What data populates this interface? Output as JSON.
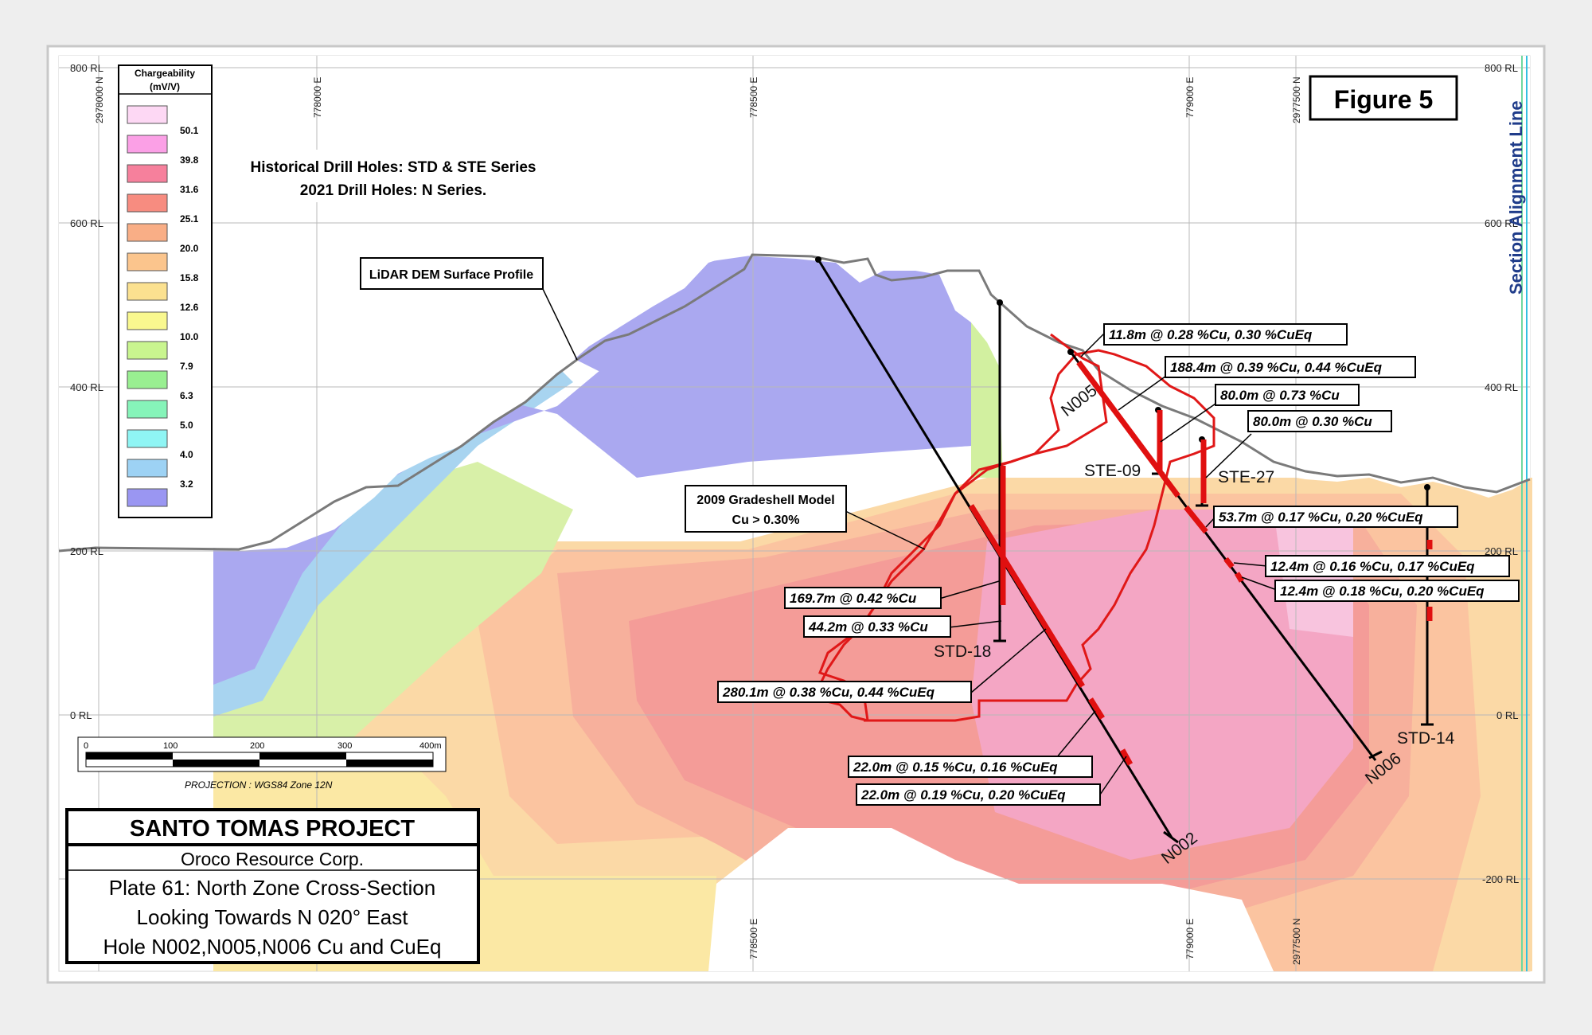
{
  "figure_label": "Figure 5",
  "side_label": "Section Alignment Line",
  "notes_box": {
    "line1": "Historical Drill Holes: STD & STE Series",
    "line2": "2021 Drill Holes: N Series."
  },
  "lidar_label": "LiDAR DEM Surface Profile",
  "gradeshell_box": {
    "line1": "2009 Gradeshell Model",
    "line2": "Cu > 0.30%"
  },
  "legend": {
    "title_line1": "Chargeability",
    "title_line2": "(mV/V)",
    "swatches": [
      {
        "color": "#fdd8f4",
        "value": "50.1"
      },
      {
        "color": "#fba0e6",
        "value": "39.8"
      },
      {
        "color": "#f6809c",
        "value": "31.6"
      },
      {
        "color": "#f78c80",
        "value": "25.1"
      },
      {
        "color": "#f9ae86",
        "value": "20.0"
      },
      {
        "color": "#fbc58d",
        "value": "15.8"
      },
      {
        "color": "#fbe190",
        "value": "12.6"
      },
      {
        "color": "#f9f88f",
        "value": "10.0"
      },
      {
        "color": "#c9f58f",
        "value": "7.9"
      },
      {
        "color": "#99ef91",
        "value": "6.3"
      },
      {
        "color": "#86f4b9",
        "value": "5.0"
      },
      {
        "color": "#8ff5f4",
        "value": "4.0"
      },
      {
        "color": "#9dd2f4",
        "value": "3.2"
      },
      {
        "color": "#9a96f2",
        "value": ""
      }
    ]
  },
  "rl_labels_left": [
    "800 RL",
    "600 RL",
    "400 RL",
    "200 RL",
    "0 RL"
  ],
  "rl_labels_right": [
    "800 RL",
    "600 RL",
    "400 RL",
    "200 RL",
    "0 RL",
    "-200 RL"
  ],
  "easting_labels_top": [
    "2978000 N",
    "778000 E",
    "778500 E",
    "779000 E",
    "2977500 N"
  ],
  "easting_labels_bottom": [
    "778500 E",
    "779000 E",
    "2977500 N"
  ],
  "scale_bar": {
    "ticks": [
      "0",
      "100",
      "200",
      "300",
      "400m"
    ],
    "projection": "PROJECTION : WGS84 Zone 12N"
  },
  "title_block": {
    "project": "SANTO TOMAS PROJECT",
    "company": "Oroco Resource Corp.",
    "plate_line1": "Plate 61: North Zone Cross-Section",
    "plate_line2": "Looking Towards N 020° East",
    "plate_line3": "Hole N002,N005,N006 Cu and CuEq"
  },
  "holes": {
    "n005": "N005",
    "n006": "N006",
    "n002": "N002",
    "std18": "STD-18",
    "std14": "STD-14",
    "ste09": "STE-09",
    "ste27": "STE-27"
  },
  "intercepts": {
    "i1": "11.8m @ 0.28 %Cu, 0.30 %CuEq",
    "i2": "188.4m @ 0.39 %Cu, 0.44 %CuEq",
    "i3": "80.0m @ 0.73 %Cu",
    "i4": "80.0m @ 0.30 %Cu",
    "i5": "53.7m @ 0.17 %Cu, 0.20 %CuEq",
    "i6": "12.4m @ 0.16 %Cu, 0.17 %CuEq",
    "i7": "12.4m @ 0.18 %Cu, 0.20 %CuEq",
    "i8": "169.7m @ 0.42 %Cu",
    "i9": "44.2m @ 0.33 %Cu",
    "i10": "280.1m @ 0.38 %Cu, 0.44 %CuEq",
    "i11": "22.0m @ 0.15 %Cu, 0.16 %CuEq",
    "i12": "22.0m @ 0.19 %Cu, 0.20 %CuEq"
  },
  "colors": {
    "drill_hole": "#000000",
    "intercept": "#e01010",
    "gradeshell": "#e01818",
    "surface": "#7a7a7a",
    "side_label": "#1f3c8a"
  }
}
